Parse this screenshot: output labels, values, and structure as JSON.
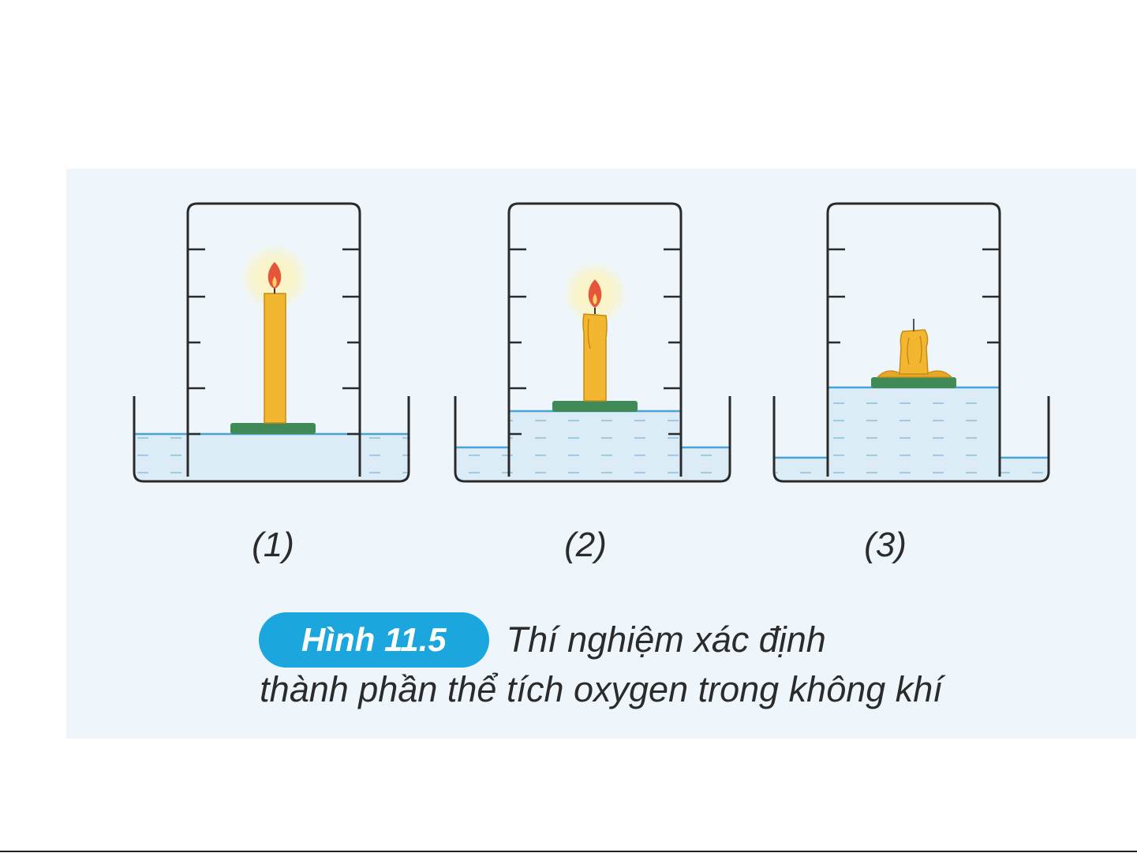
{
  "experiments": [
    {
      "id": 1,
      "label": "(1)",
      "candle": "tall, burning",
      "water_level_inside": "low"
    },
    {
      "id": 2,
      "label": "(2)",
      "candle": "shorter, burning",
      "water_level_inside": "medium"
    },
    {
      "id": 3,
      "label": "(3)",
      "candle": "short, extinguished",
      "water_level_inside": "high"
    }
  ],
  "caption": {
    "badge": "Hình 11.5",
    "line1": "Thí nghiệm xác định",
    "line2": "thành phần thể tích oxygen trong không khí"
  },
  "colors": {
    "panel_background": "#eef6fb",
    "water": "#dcecf6",
    "water_line": "#4aa3d6",
    "candle_wax": "#f2b630",
    "float_board": "#3f8a57",
    "flame": "#e5553a",
    "badge": "#1ba7dd"
  }
}
